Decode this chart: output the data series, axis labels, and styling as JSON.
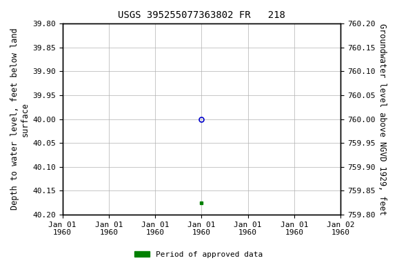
{
  "title": "USGS 395255077363802 FR   218",
  "ylabel_left": "Depth to water level, feet below land\nsurface",
  "ylabel_right": "Groundwater level above NGVD 1929, feet",
  "ylim_left": [
    40.2,
    39.8
  ],
  "ylim_right": [
    759.8,
    760.2
  ],
  "yticks_left": [
    39.8,
    39.85,
    39.9,
    39.95,
    40.0,
    40.05,
    40.1,
    40.15,
    40.2
  ],
  "yticks_right": [
    760.2,
    760.15,
    760.1,
    760.05,
    760.0,
    759.95,
    759.9,
    759.85,
    759.8
  ],
  "xlim": [
    0,
    6
  ],
  "xticks": [
    0,
    1,
    2,
    3,
    4,
    5,
    6
  ],
  "xticklabels": [
    "Jan 01\n1960",
    "Jan 01\n1960",
    "Jan 01\n1960",
    "Jan 01\n1960",
    "Jan 01\n1960",
    "Jan 01\n1960",
    "Jan 02\n1960"
  ],
  "data_point_x": 3,
  "data_point_y": 40.0,
  "approved_point_x": 3,
  "approved_point_y": 40.175,
  "point_color_open": "#0000cc",
  "point_color_approved": "#008000",
  "legend_label": "Period of approved data",
  "legend_color": "#008000",
  "bg_color": "#ffffff",
  "grid_color": "#b0b0b0",
  "title_fontsize": 10,
  "tick_fontsize": 8,
  "label_fontsize": 8.5
}
